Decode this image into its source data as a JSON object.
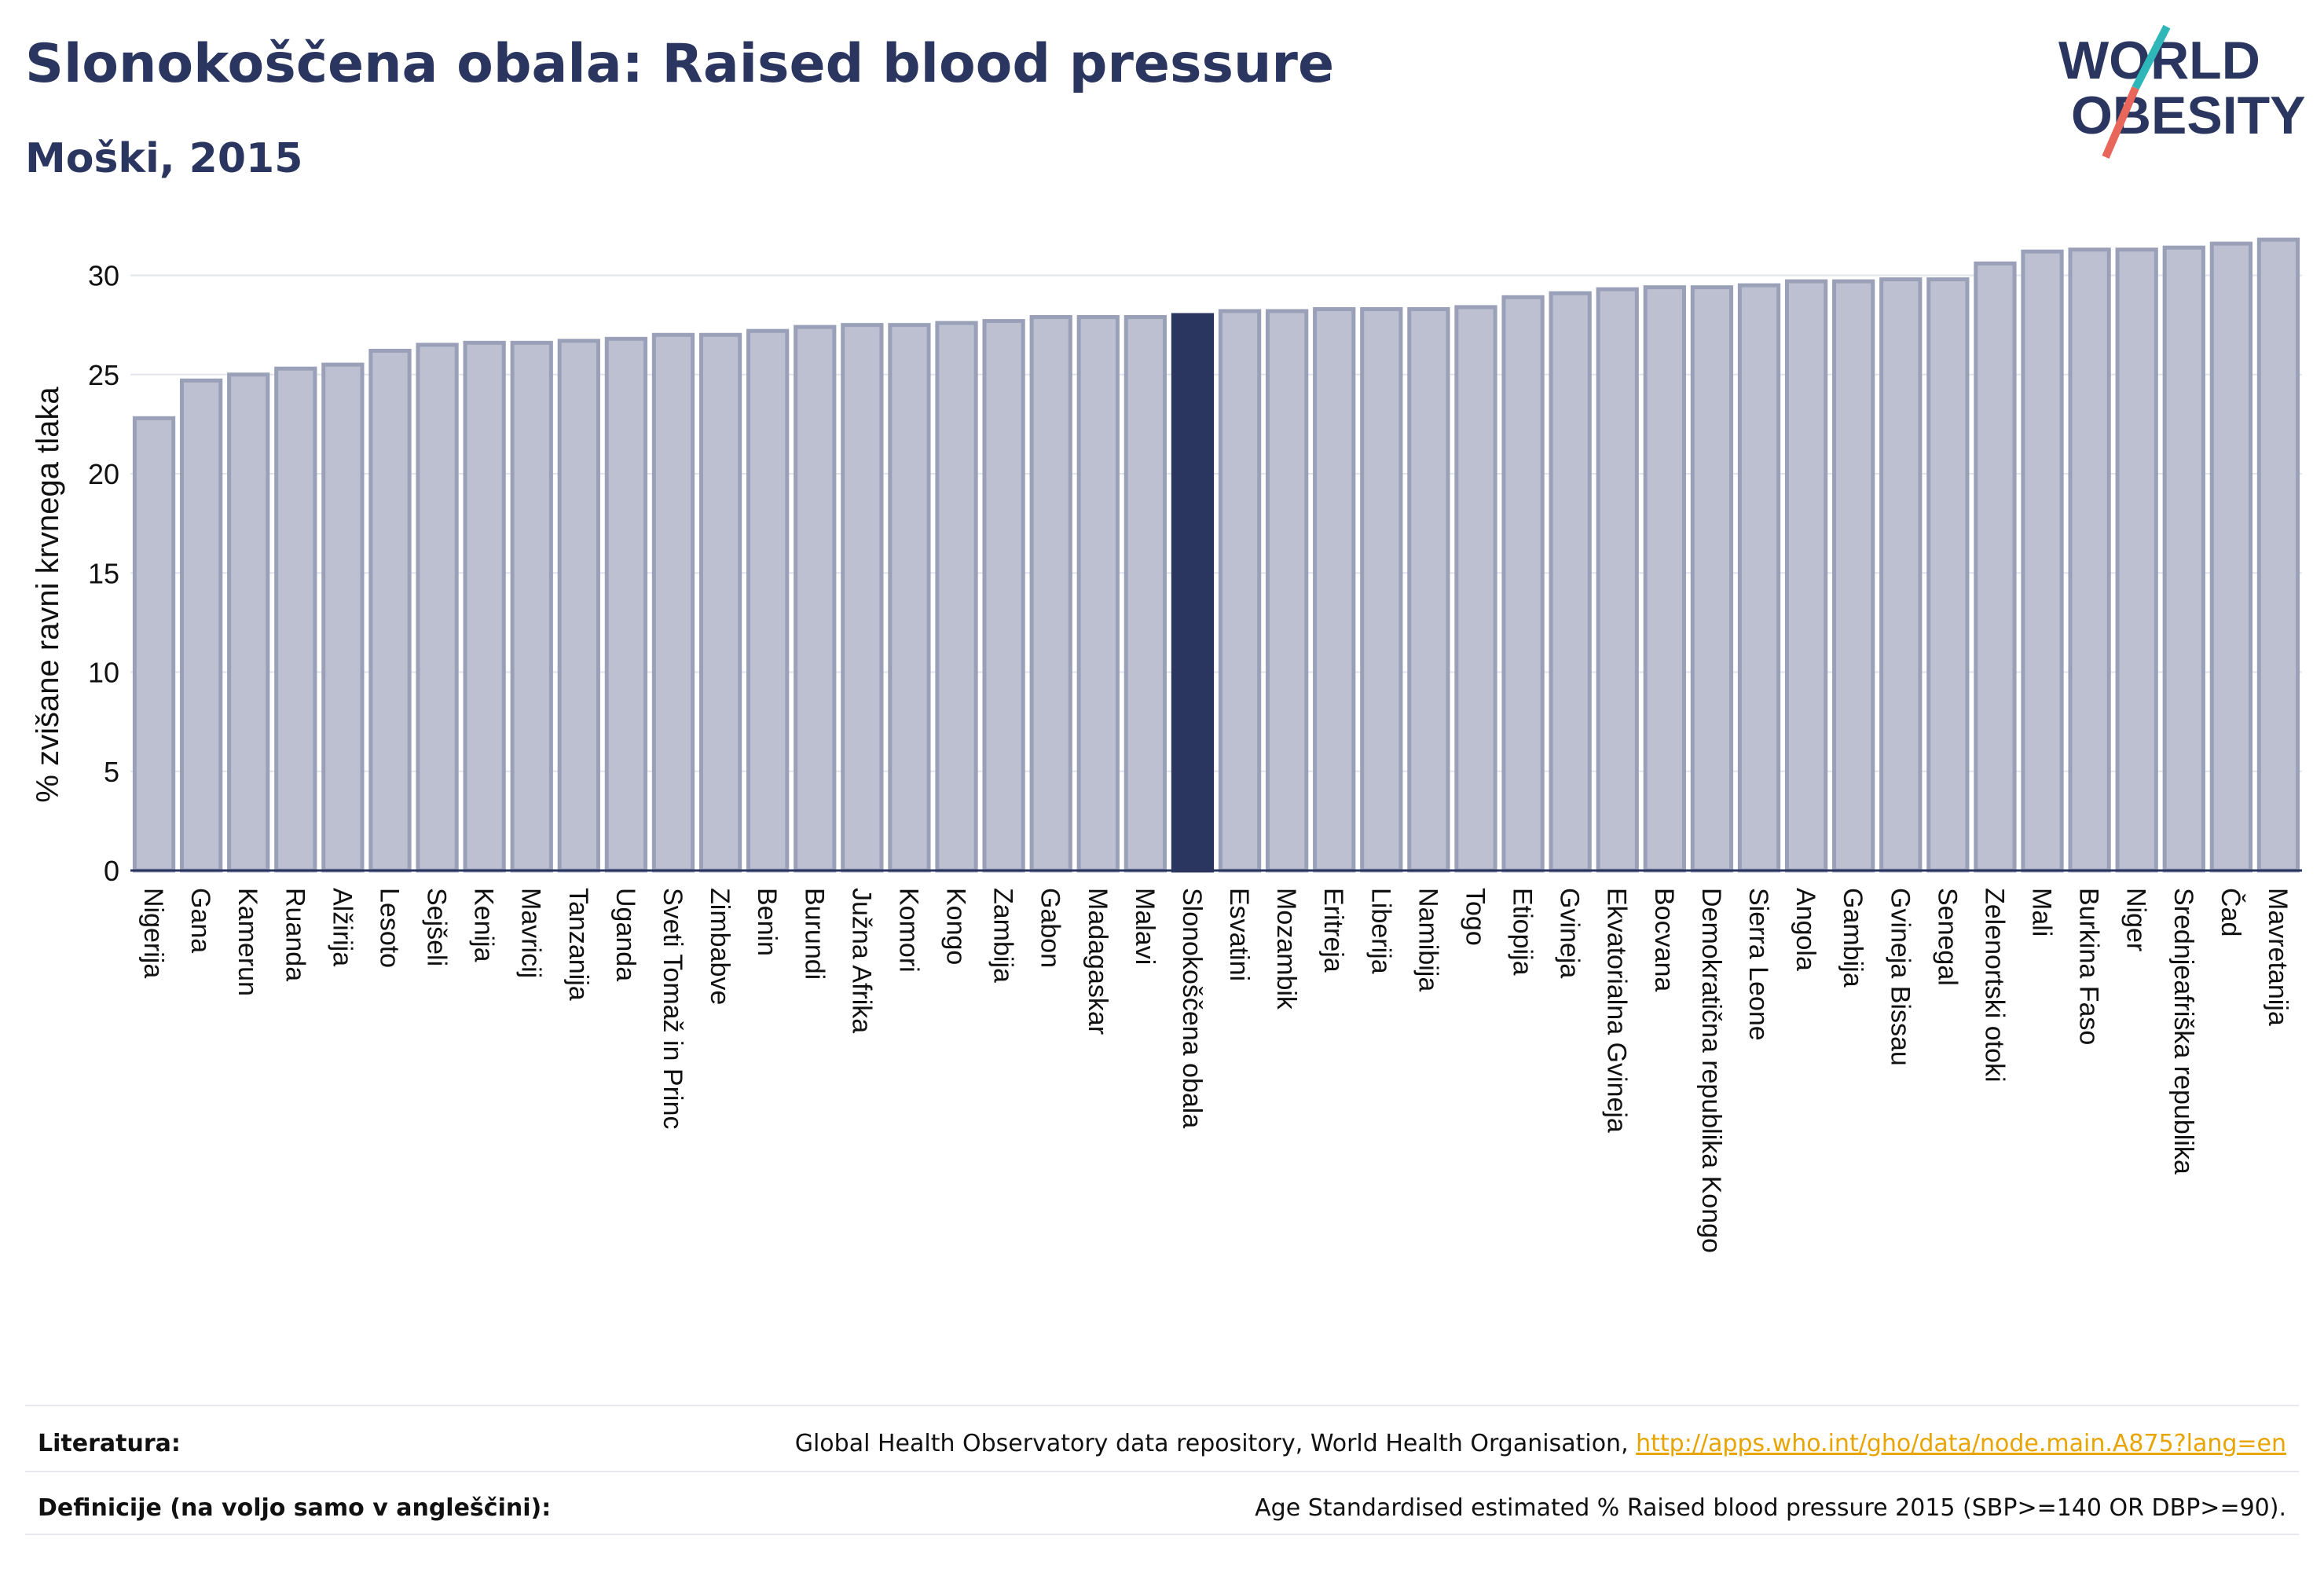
{
  "header": {
    "title": "Slonokoščena obala: Raised blood pressure",
    "subtitle": "Moški, 2015"
  },
  "logo": {
    "line1": "WORLD",
    "line2": "OBESITY"
  },
  "chart_data": {
    "type": "bar",
    "ylabel": "% zvišane ravni krvnega tlaka",
    "ylim": [
      0,
      32
    ],
    "yticks": [
      0,
      5,
      10,
      15,
      20,
      25,
      30
    ],
    "grid": true,
    "highlight": "Slonokoščena obala",
    "categories": [
      "Nigerija",
      "Gana",
      "Kamerun",
      "Ruanda",
      "Alžirija",
      "Lesoto",
      "Sejšeli",
      "Kenija",
      "Mavricij",
      "Tanzanija",
      "Uganda",
      "Sveti Tomaž in Princ",
      "Zimbabve",
      "Benin",
      "Burundi",
      "Južna Afrika",
      "Komori",
      "Kongo",
      "Zambija",
      "Gabon",
      "Madagaskar",
      "Malavi",
      "Slonokoščena obala",
      "Esvatini",
      "Mozambik",
      "Eritreja",
      "Liberija",
      "Namibija",
      "Togo",
      "Etiopija",
      "Gvineja",
      "Ekvatorialna Gvineja",
      "Bocvana",
      "Demokratična republika Kongo",
      "Sierra Leone",
      "Angola",
      "Gambija",
      "Gvineja Bissau",
      "Senegal",
      "Zelenortski otoki",
      "Mali",
      "Burkina Faso",
      "Niger",
      "Srednjeafriška republika",
      "Čad",
      "Mavretanija"
    ],
    "values": [
      22.8,
      24.7,
      25.0,
      25.3,
      25.5,
      26.2,
      26.5,
      26.6,
      26.6,
      26.7,
      26.8,
      27.0,
      27.0,
      27.2,
      27.4,
      27.5,
      27.5,
      27.6,
      27.7,
      27.9,
      27.9,
      27.9,
      28.0,
      28.2,
      28.2,
      28.3,
      28.3,
      28.3,
      28.4,
      28.9,
      29.1,
      29.3,
      29.4,
      29.4,
      29.5,
      29.7,
      29.7,
      29.8,
      29.8,
      30.6,
      31.2,
      31.3,
      31.3,
      31.4,
      31.6,
      31.8
    ],
    "colors": {
      "bar": "#bcc0d0",
      "bar_border": "#9aa0b8",
      "highlight": "#2a3560",
      "axis": "#2a3560",
      "grid": "#e3e5ec"
    }
  },
  "footer": {
    "sources_label": "Literatura:",
    "sources_text": "Global Health Observatory data repository, World Health Organisation, ",
    "sources_link": "http://apps.who.int/gho/data/node.main.A875?lang=en",
    "definitions_label": "Definicije (na voljo samo v angleščini):",
    "definitions_text": "Age Standardised estimated % Raised blood pressure 2015 (SBP>=140 OR DBP>=90)."
  }
}
